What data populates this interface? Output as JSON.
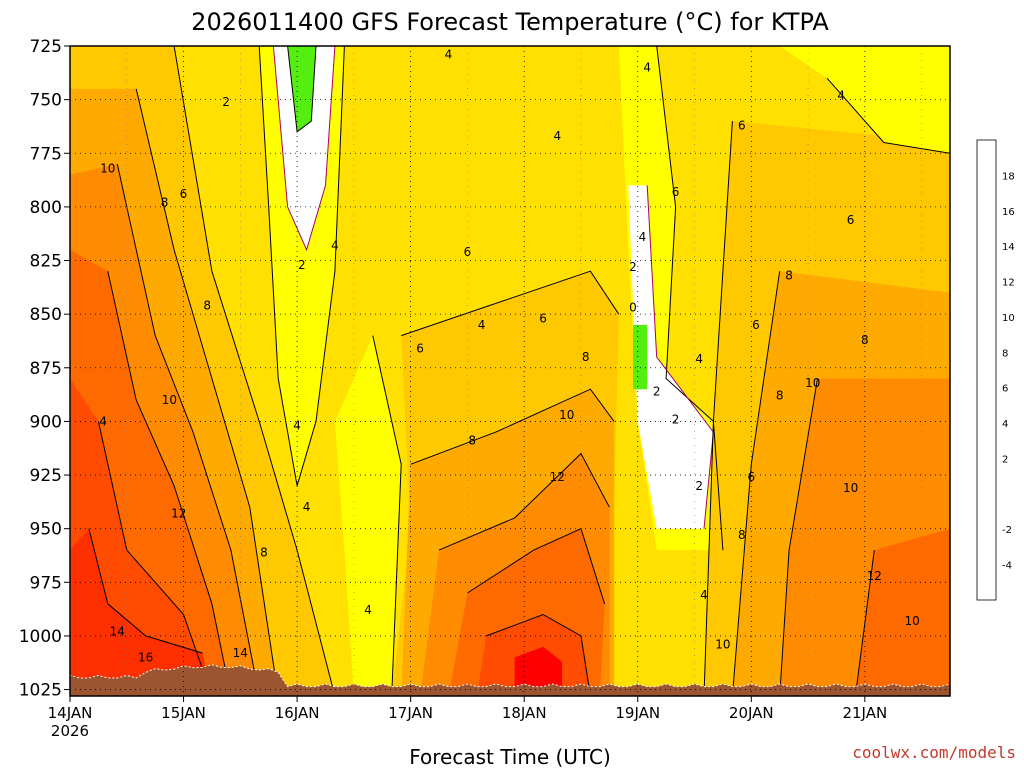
{
  "chart_data": {
    "type": "heatmap",
    "title": "2026011400 GFS Forecast Temperature (°C) for KTPA",
    "xlabel": "Forecast Time (UTC)",
    "ylabel": "",
    "credit": "coolwx.com/models",
    "x_ticks": [
      "14JAN",
      "15JAN",
      "16JAN",
      "17JAN",
      "18JAN",
      "19JAN",
      "20JAN",
      "21JAN"
    ],
    "x_tick_hours": [
      0,
      24,
      48,
      72,
      96,
      120,
      144,
      168
    ],
    "x_start_sublabel": "2026",
    "x_range_hours": [
      0,
      186
    ],
    "y_ticks": [
      725,
      750,
      775,
      800,
      825,
      850,
      875,
      900,
      925,
      950,
      975,
      1000,
      1025
    ],
    "y_range_hpa": [
      725,
      1028
    ],
    "colorbar": {
      "ticks": [
        18,
        16,
        14,
        12,
        10,
        8,
        6,
        4,
        2,
        -2,
        -4
      ],
      "bins": [
        {
          "min": -6,
          "max": -4,
          "color": "#22ee55"
        },
        {
          "min": -4,
          "max": -2,
          "color": "#55ee11"
        },
        {
          "min": -2,
          "max": 2,
          "color": "#ffffff"
        },
        {
          "min": 2,
          "max": 4,
          "color": "#ffff00"
        },
        {
          "min": 4,
          "max": 6,
          "color": "#ffe000"
        },
        {
          "min": 6,
          "max": 8,
          "color": "#ffc800"
        },
        {
          "min": 8,
          "max": 10,
          "color": "#ffaa00"
        },
        {
          "min": 10,
          "max": 12,
          "color": "#ff8c00"
        },
        {
          "min": 12,
          "max": 14,
          "color": "#ff6a00"
        },
        {
          "min": 14,
          "max": 16,
          "color": "#ff4c00"
        },
        {
          "min": 16,
          "max": 18,
          "color": "#ff3000"
        },
        {
          "min": 18,
          "max": 20,
          "color": "#ff0000"
        }
      ]
    },
    "terrain_color": "#9b5530",
    "contour_labels": [
      {
        "hour": 7,
        "p": 900,
        "text": "4"
      },
      {
        "hour": 33,
        "p": 751,
        "text": "2"
      },
      {
        "hour": 8,
        "p": 782,
        "text": "10"
      },
      {
        "hour": 20,
        "p": 798,
        "text": "8"
      },
      {
        "hour": 24,
        "p": 794,
        "text": "6"
      },
      {
        "hour": 29,
        "p": 846,
        "text": "8"
      },
      {
        "hour": 21,
        "p": 890,
        "text": "10"
      },
      {
        "hour": 23,
        "p": 943,
        "text": "12"
      },
      {
        "hour": 10,
        "p": 998,
        "text": "14"
      },
      {
        "hour": 16,
        "p": 1010,
        "text": "16"
      },
      {
        "hour": 36,
        "p": 1008,
        "text": "14"
      },
      {
        "hour": 41,
        "p": 961,
        "text": "8"
      },
      {
        "hour": 48,
        "p": 902,
        "text": "4"
      },
      {
        "hour": 50,
        "p": 940,
        "text": "4"
      },
      {
        "hour": 49,
        "p": 827,
        "text": "2"
      },
      {
        "hour": 56,
        "p": 818,
        "text": "4"
      },
      {
        "hour": 80,
        "p": 729,
        "text": "4"
      },
      {
        "hour": 103,
        "p": 767,
        "text": "4"
      },
      {
        "hour": 84,
        "p": 821,
        "text": "6"
      },
      {
        "hour": 87,
        "p": 855,
        "text": "4"
      },
      {
        "hour": 74,
        "p": 866,
        "text": "6"
      },
      {
        "hour": 100,
        "p": 852,
        "text": "6"
      },
      {
        "hour": 85,
        "p": 909,
        "text": "8"
      },
      {
        "hour": 105,
        "p": 897,
        "text": "10"
      },
      {
        "hour": 109,
        "p": 870,
        "text": "8"
      },
      {
        "hour": 103,
        "p": 926,
        "text": "12"
      },
      {
        "hour": 63,
        "p": 988,
        "text": "4"
      },
      {
        "hour": 119,
        "p": 847,
        "text": "0"
      },
      {
        "hour": 119,
        "p": 828,
        "text": "2"
      },
      {
        "hour": 121,
        "p": 814,
        "text": "4"
      },
      {
        "hour": 124,
        "p": 886,
        "text": "2"
      },
      {
        "hour": 128,
        "p": 899,
        "text": "2"
      },
      {
        "hour": 122,
        "p": 735,
        "text": "4"
      },
      {
        "hour": 133,
        "p": 930,
        "text": "2"
      },
      {
        "hour": 128,
        "p": 793,
        "text": "6"
      },
      {
        "hour": 142,
        "p": 762,
        "text": "6"
      },
      {
        "hour": 163,
        "p": 748,
        "text": "4"
      },
      {
        "hour": 165,
        "p": 806,
        "text": "6"
      },
      {
        "hour": 145,
        "p": 855,
        "text": "6"
      },
      {
        "hour": 133,
        "p": 871,
        "text": "4"
      },
      {
        "hour": 152,
        "p": 832,
        "text": "8"
      },
      {
        "hour": 150,
        "p": 888,
        "text": "8"
      },
      {
        "hour": 157,
        "p": 882,
        "text": "10"
      },
      {
        "hour": 144,
        "p": 926,
        "text": "6"
      },
      {
        "hour": 142,
        "p": 953,
        "text": "8"
      },
      {
        "hour": 168,
        "p": 862,
        "text": "8"
      },
      {
        "hour": 165,
        "p": 931,
        "text": "10"
      },
      {
        "hour": 170,
        "p": 972,
        "text": "12"
      },
      {
        "hour": 178,
        "p": 993,
        "text": "10"
      },
      {
        "hour": 138,
        "p": 1004,
        "text": "10"
      },
      {
        "hour": 134,
        "p": 981,
        "text": "4"
      }
    ]
  }
}
